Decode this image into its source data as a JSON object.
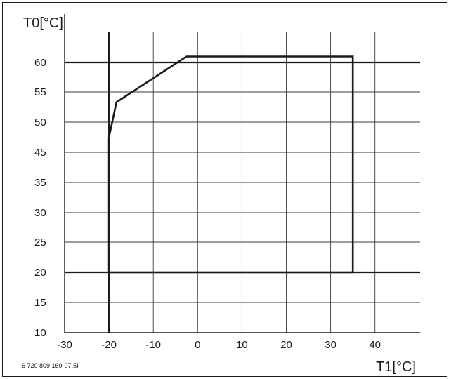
{
  "chart_data": {
    "type": "line",
    "title": "",
    "ylabel": "T0[°C]",
    "xlabel": "T1[°C]",
    "figure_id": "6 720 809 169-07.5I",
    "xlim": [
      -30,
      50
    ],
    "ylim": [
      10,
      62
    ],
    "x_ticks": [
      -30,
      -20,
      -10,
      0,
      10,
      20,
      30,
      40
    ],
    "y_ticks": [
      10,
      15,
      20,
      25,
      30,
      35,
      45,
      50,
      55,
      60
    ],
    "x_gridlines": [
      -20,
      -10,
      0,
      10,
      20,
      30,
      40
    ],
    "y_gridlines": [
      15,
      20,
      25,
      30,
      35,
      45,
      50,
      55,
      60
    ],
    "grid": true,
    "bold_gridlines": {
      "x": [
        -20
      ],
      "y": [
        20,
        60
      ]
    },
    "series": [
      {
        "points": [
          {
            "x": -20,
            "y": 20
          },
          {
            "x": -20,
            "y": 47.5
          },
          {
            "x": -18.3,
            "y": 53.3
          },
          {
            "x": -2.5,
            "y": 61
          },
          {
            "x": 35,
            "y": 61
          },
          {
            "x": 35,
            "y": 20
          },
          {
            "x": -20,
            "y": 20
          }
        ]
      }
    ]
  }
}
